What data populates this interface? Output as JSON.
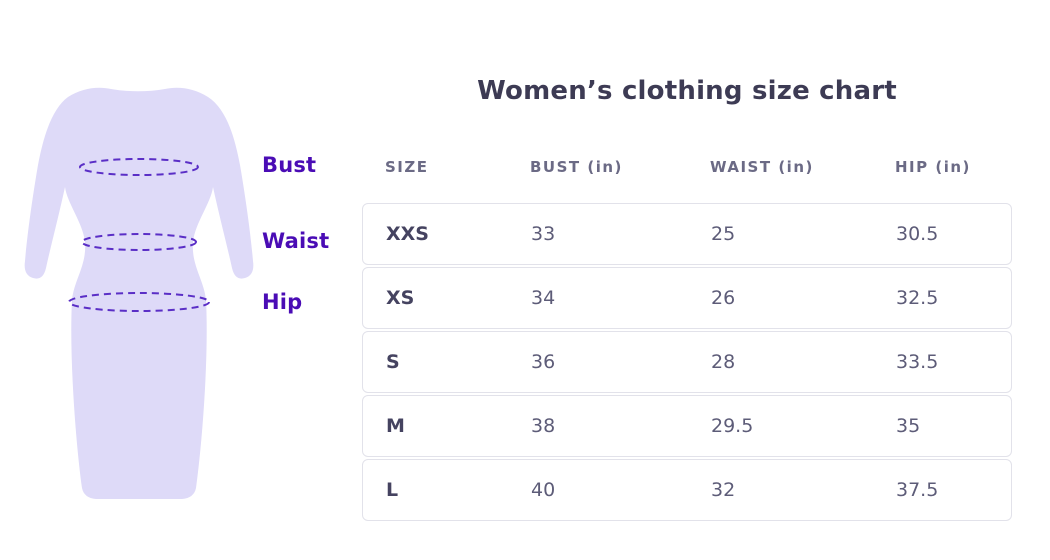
{
  "page": {
    "title": "Women’s clothing size chart"
  },
  "figure": {
    "name": "dress-measurement-diagram",
    "labels": {
      "bust": "Bust",
      "waist": "Waist",
      "hip": "Hip"
    },
    "colors": {
      "dress_fill": "#dedaf8",
      "dash_stroke": "#5a2ec6",
      "label_purple": "#4a0cb5",
      "title_text": "#3d3b54",
      "header_text": "#6b6a85",
      "cell_text": "#5d5c78",
      "row_border": "#e2e2ea"
    }
  },
  "table": {
    "headers": [
      "SIZE",
      "BUST (in)",
      "WAIST (in)",
      "HIP (in)"
    ],
    "rows": [
      {
        "size": "XXS",
        "bust": "33",
        "waist": "25",
        "hip": "30.5"
      },
      {
        "size": "XS",
        "bust": "34",
        "waist": "26",
        "hip": "32.5"
      },
      {
        "size": "S",
        "bust": "36",
        "waist": "28",
        "hip": "33.5"
      },
      {
        "size": "M",
        "bust": "38",
        "waist": "29.5",
        "hip": "35"
      },
      {
        "size": "L",
        "bust": "40",
        "waist": "32",
        "hip": "37.5"
      }
    ]
  },
  "chart_data": {
    "type": "table",
    "title": "Women’s clothing size chart",
    "columns": [
      "SIZE",
      "BUST (in)",
      "WAIST (in)",
      "HIP (in)"
    ],
    "rows": [
      [
        "XXS",
        33,
        25,
        30.5
      ],
      [
        "XS",
        34,
        26,
        32.5
      ],
      [
        "S",
        36,
        28,
        33.5
      ],
      [
        "M",
        38,
        29.5,
        35
      ],
      [
        "L",
        40,
        32,
        37.5
      ]
    ],
    "units": "inches",
    "annotations": [
      "Bust",
      "Waist",
      "Hip"
    ]
  }
}
